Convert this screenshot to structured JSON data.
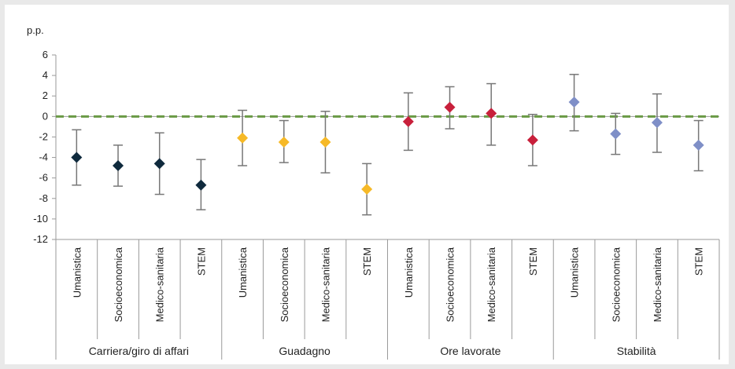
{
  "chart_data": {
    "type": "scatter",
    "unit_label": "p.p.",
    "ylim": [
      -12,
      6
    ],
    "y_ticks": [
      6,
      4,
      2,
      0,
      -2,
      -4,
      -6,
      -8,
      -10,
      -12
    ],
    "groups": [
      {
        "label": "Carriera/giro di affari",
        "color": "#0f2a3d",
        "points": [
          {
            "category": "Umanistica",
            "value": -4.0,
            "low": -6.7,
            "high": -1.3
          },
          {
            "category": "Socioeconomica",
            "value": -4.8,
            "low": -6.8,
            "high": -2.8
          },
          {
            "category": "Medico-sanitaria",
            "value": -4.6,
            "low": -7.6,
            "high": -1.6
          },
          {
            "category": "STEM",
            "value": -6.7,
            "low": -9.1,
            "high": -4.2
          }
        ]
      },
      {
        "label": "Guadagno",
        "color": "#f6b927",
        "points": [
          {
            "category": "Umanistica",
            "value": -2.1,
            "low": -4.8,
            "high": 0.6
          },
          {
            "category": "Socioeconomica",
            "value": -2.5,
            "low": -4.5,
            "high": -0.4
          },
          {
            "category": "Medico-sanitaria",
            "value": -2.5,
            "low": -5.5,
            "high": 0.5
          },
          {
            "category": "STEM",
            "value": -7.1,
            "low": -9.6,
            "high": -4.6
          }
        ]
      },
      {
        "label": "Ore lavorate",
        "color": "#c8203b",
        "points": [
          {
            "category": "Umanistica",
            "value": -0.5,
            "low": -3.3,
            "high": 2.3
          },
          {
            "category": "Socioeconomica",
            "value": 0.9,
            "low": -1.2,
            "high": 2.9
          },
          {
            "category": "Medico-sanitaria",
            "value": 0.3,
            "low": -2.8,
            "high": 3.2
          },
          {
            "category": "STEM",
            "value": -2.3,
            "low": -4.8,
            "high": 0.2
          }
        ]
      },
      {
        "label": "Stabilità",
        "color": "#7f8fc7",
        "points": [
          {
            "category": "Umanistica",
            "value": 1.4,
            "low": -1.4,
            "high": 4.1
          },
          {
            "category": "Socioeconomica",
            "value": -1.7,
            "low": -3.7,
            "high": 0.3
          },
          {
            "category": "Medico-sanitaria",
            "value": -0.6,
            "low": -3.5,
            "high": 2.2
          },
          {
            "category": "STEM",
            "value": -2.8,
            "low": -5.3,
            "high": -0.4
          }
        ]
      }
    ],
    "reference_line": {
      "value": 0,
      "color": "#6a9a45",
      "style": "dashed"
    },
    "axis_color": "#9a9a9a",
    "error_bar_color": "#777777"
  }
}
